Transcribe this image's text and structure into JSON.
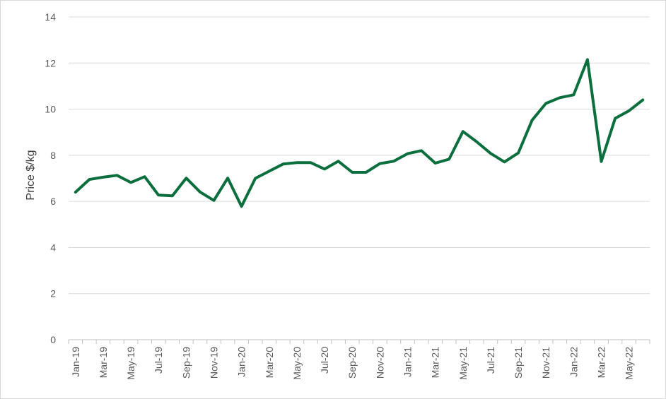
{
  "chart_data": {
    "type": "line",
    "title": "",
    "xlabel": "",
    "ylabel": "Price $/kg",
    "ylim": [
      0,
      14
    ],
    "y_ticks": [
      "0",
      "2",
      "4",
      "6",
      "8",
      "10",
      "12",
      "14"
    ],
    "x": [
      "Jan-19",
      "Feb-19",
      "Mar-19",
      "Apr-19",
      "May-19",
      "Jun-19",
      "Jul-19",
      "Aug-19",
      "Sep-19",
      "Oct-19",
      "Nov-19",
      "Dec-19",
      "Jan-20",
      "Feb-20",
      "Mar-20",
      "Apr-20",
      "May-20",
      "Jun-20",
      "Jul-20",
      "Aug-20",
      "Sep-20",
      "Oct-20",
      "Nov-20",
      "Dec-20",
      "Jan-21",
      "Feb-21",
      "Mar-21",
      "Apr-21",
      "May-21",
      "Jun-21",
      "Jul-21",
      "Aug-21",
      "Sep-21",
      "Oct-21",
      "Nov-21",
      "Dec-21",
      "Jan-22",
      "Feb-22",
      "Mar-22",
      "Apr-22",
      "May-22",
      "Jun-22"
    ],
    "x_tick_labels": [
      "Jan-19",
      "Mar-19",
      "May-19",
      "Jul-19",
      "Sep-19",
      "Nov-19",
      "Jan-20",
      "Mar-20",
      "May-20",
      "Jul-20",
      "Sep-20",
      "Nov-20",
      "Jan-21",
      "Mar-21",
      "May-21",
      "Jul-21",
      "Sep-21",
      "Nov-21",
      "Jan-22",
      "Mar-22",
      "May-22"
    ],
    "series": [
      {
        "color": "#0b6e3d",
        "values": [
          6.4,
          6.95,
          7.05,
          7.13,
          6.82,
          7.07,
          6.27,
          6.24,
          7.01,
          6.41,
          6.04,
          7.01,
          5.78,
          7.0,
          7.31,
          7.62,
          7.68,
          7.68,
          7.4,
          7.74,
          7.26,
          7.26,
          7.64,
          7.74,
          8.07,
          8.2,
          7.66,
          7.83,
          9.03,
          8.58,
          8.08,
          7.71,
          8.1,
          9.52,
          10.25,
          10.5,
          10.62,
          12.15,
          7.73,
          9.6,
          9.93,
          10.4
        ]
      }
    ],
    "grid": true,
    "legend": "none"
  }
}
